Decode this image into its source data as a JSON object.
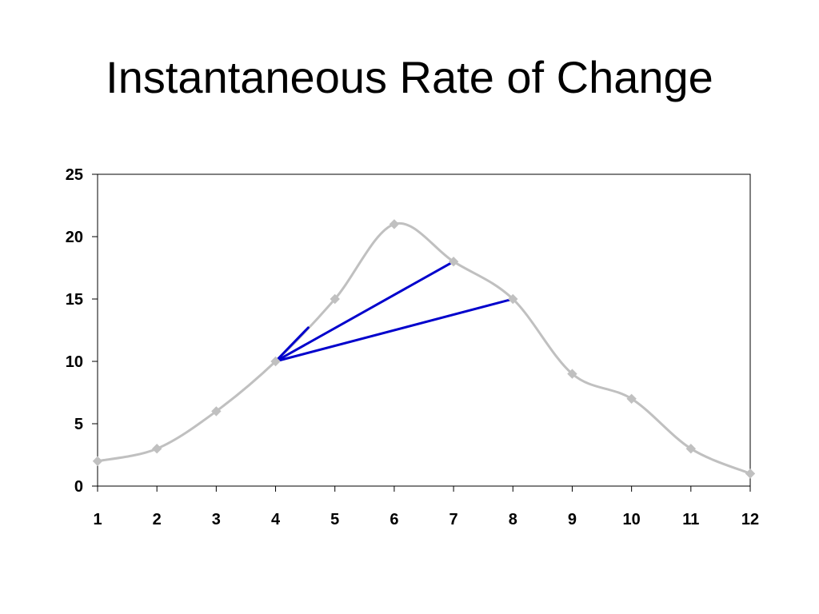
{
  "slide": {
    "title": "Instantaneous Rate of Change"
  },
  "chart_data": {
    "type": "line",
    "title": "",
    "xlabel": "",
    "ylabel": "",
    "x": [
      1,
      2,
      3,
      4,
      5,
      6,
      7,
      8,
      9,
      10,
      11,
      12
    ],
    "series": [
      {
        "values": [
          2,
          3,
          6,
          10,
          15,
          21,
          18,
          15,
          9,
          7,
          3,
          1
        ],
        "color": "#c0c0c0",
        "marker": "diamond",
        "smooth": true
      }
    ],
    "x_ticks": [
      "1",
      "2",
      "3",
      "4",
      "5",
      "6",
      "7",
      "8",
      "9",
      "10",
      "11",
      "12"
    ],
    "y_ticks": [
      "0",
      "5",
      "10",
      "15",
      "20",
      "25"
    ],
    "xlim": [
      1,
      12
    ],
    "ylim": [
      0,
      25
    ],
    "grid": false,
    "legend": "none",
    "annotations": [
      {
        "type": "line",
        "name": "tangent-line",
        "from": [
          4,
          10
        ],
        "to": [
          4.55,
          12.7
        ],
        "color": "#0000cc"
      },
      {
        "type": "line",
        "name": "secant-line-4-7",
        "from": [
          4,
          10
        ],
        "to": [
          7,
          18
        ],
        "color": "#0000cc"
      },
      {
        "type": "line",
        "name": "secant-line-4-8",
        "from": [
          4,
          10
        ],
        "to": [
          8,
          15
        ],
        "color": "#0000cc"
      }
    ]
  }
}
